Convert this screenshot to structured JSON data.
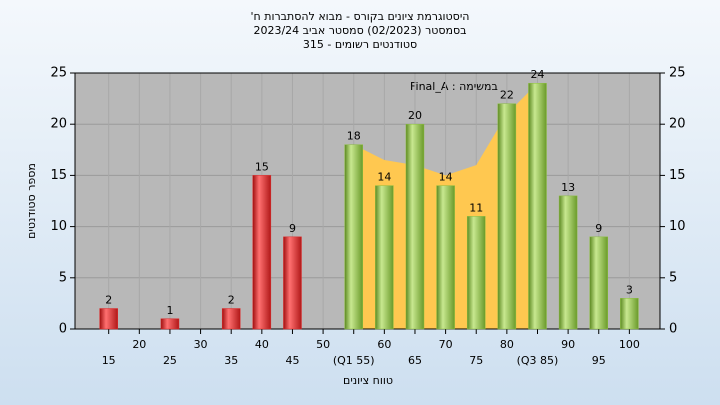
{
  "chart_data": {
    "type": "bar",
    "title_lines": [
      "היסטוגרמת ציונים בקורס - מבוא להסתברות ח'",
      "בסמסטר  (02/2023)  סמסטר אביב 2023/24",
      "סטודנטים רשומים - 315"
    ],
    "legend_label": "במשימה : Final_A",
    "ylabel": "מספר סטודנטים",
    "xlabel": "טווח ציונים",
    "xlim": [
      9.5,
      105
    ],
    "xticks": [
      15,
      20,
      25,
      30,
      35,
      40,
      45,
      50,
      {
        "value": 55,
        "label": "(Q1 55)"
      },
      60,
      65,
      70,
      75,
      80,
      {
        "value": 85,
        "label": "(Q3 85)"
      },
      90,
      95,
      100
    ],
    "ylim": [
      0,
      25
    ],
    "yticks": [
      0,
      5,
      10,
      15,
      20,
      25
    ],
    "y2lim": [
      0,
      25
    ],
    "y2ticks": [
      0,
      5,
      10,
      15,
      20,
      25
    ],
    "grid": true,
    "area": {
      "color": "#ffc850",
      "x": [
        55,
        60,
        65,
        70,
        75,
        80,
        85
      ],
      "values": [
        18,
        16.5,
        16,
        15,
        16,
        21,
        24
      ]
    },
    "series": [
      {
        "color": "#e02828",
        "x": [
          15,
          20,
          25,
          30,
          35,
          40,
          45,
          50
        ],
        "values": [
          2,
          0,
          1,
          0,
          2,
          15,
          9,
          0
        ]
      },
      {
        "color": "#8cbf40",
        "x": [
          55,
          60,
          65,
          70,
          75,
          80,
          85,
          90,
          95,
          100
        ],
        "values": [
          18,
          14,
          20,
          14,
          11,
          22,
          24,
          13,
          9,
          3
        ]
      }
    ]
  }
}
